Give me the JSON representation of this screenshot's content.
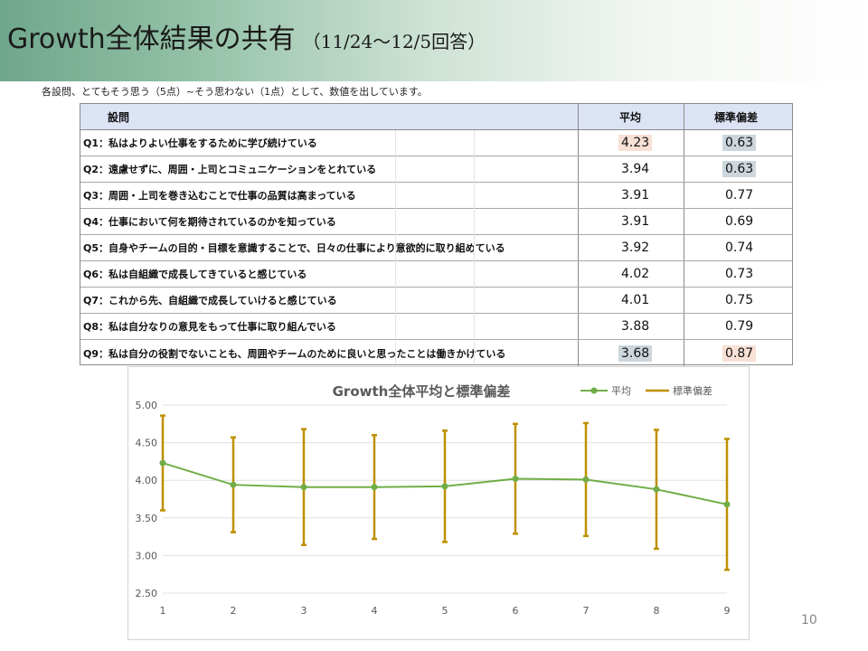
{
  "header": {
    "title": "Growth全体結果の共有",
    "subtitle": "（11/24～12/5回答）"
  },
  "note": "各設問、とてもそう思う（5点）~そう思わない（1点）として、数値を出しています。",
  "table": {
    "headers": [
      "設問",
      "平均",
      "標準偏差"
    ],
    "rows": [
      {
        "q": "Q1：私はよりよい仕事をするために学び続けている",
        "mean": "4.23",
        "sd": "0.63",
        "mean_hl": "#f8e0d5",
        "sd_hl": "#ccd6dc"
      },
      {
        "q": "Q2：遠慮せずに、周囲・上司とコミュニケーションをとれている",
        "mean": "3.94",
        "sd": "0.63",
        "mean_hl": "",
        "sd_hl": "#ccd6dc"
      },
      {
        "q": "Q3：周囲・上司を巻き込むことで仕事の品質は高まっている",
        "mean": "3.91",
        "sd": "0.77",
        "mean_hl": "",
        "sd_hl": ""
      },
      {
        "q": "Q4：仕事において何を期待されているのかを知っている",
        "mean": "3.91",
        "sd": "0.69",
        "mean_hl": "",
        "sd_hl": ""
      },
      {
        "q": "Q5：自身やチームの目的・目標を意識することで、日々の仕事により意欲的に取り組めている",
        "mean": "3.92",
        "sd": "0.74",
        "mean_hl": "",
        "sd_hl": ""
      },
      {
        "q": "Q6：私は自組織で成長してきていると感じている",
        "mean": "4.02",
        "sd": "0.73",
        "mean_hl": "",
        "sd_hl": ""
      },
      {
        "q": "Q7：これから先、自組織で成長していけると感じている",
        "mean": "4.01",
        "sd": "0.75",
        "mean_hl": "",
        "sd_hl": ""
      },
      {
        "q": "Q8：私は自分なりの意見をもって仕事に取り組んでいる",
        "mean": "3.88",
        "sd": "0.79",
        "mean_hl": "",
        "sd_hl": ""
      },
      {
        "q": "Q9：私は自分の役割でないことも、周囲やチームのために良いと思ったことは働きかけている",
        "mean": "3.68",
        "sd": "0.87",
        "mean_hl": "#ccd6dc",
        "sd_hl": "#f8e0d5"
      }
    ]
  },
  "chart_data": {
    "type": "line",
    "title": "Growth全体平均と標準偏差",
    "x": [
      1,
      2,
      3,
      4,
      5,
      6,
      7,
      8,
      9
    ],
    "x_tick_labels": [
      "1",
      "2",
      "3",
      "4",
      "5",
      "6",
      "7",
      "8",
      "9"
    ],
    "series": [
      {
        "name": "平均",
        "values": [
          4.23,
          3.94,
          3.91,
          3.91,
          3.92,
          4.02,
          4.01,
          3.88,
          3.68
        ],
        "color": "#70ad47"
      }
    ],
    "error_bars": {
      "name": "標準偏差",
      "values": [
        0.63,
        0.63,
        0.77,
        0.69,
        0.74,
        0.73,
        0.75,
        0.79,
        0.87
      ],
      "color": "#bf9000"
    },
    "ylim": [
      2.5,
      5.0
    ],
    "y_ticks": [
      2.5,
      3.0,
      3.5,
      4.0,
      4.5,
      5.0
    ],
    "y_tick_labels": [
      "2.50",
      "3.00",
      "3.50",
      "4.00",
      "4.50",
      "5.00"
    ],
    "legend": "top-right",
    "grid": true
  },
  "page_number": "10"
}
